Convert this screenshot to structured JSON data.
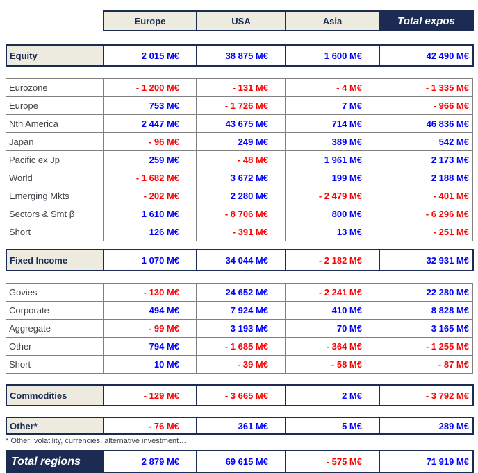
{
  "colors": {
    "navy": "#1b2b52",
    "cream": "#edeae0",
    "positive_value": "#0000fe",
    "negative_value": "#fe0000",
    "detail_border": "#808080"
  },
  "header": {
    "columns": [
      "Europe",
      "USA",
      "Asia",
      "Total expos"
    ]
  },
  "blocks": [
    {
      "type": "summary",
      "id": "equity",
      "label": "Equity",
      "values": [
        "2 015 M€",
        "38 875 M€",
        "1 600 M€",
        "42 490 M€"
      ]
    },
    {
      "type": "detail",
      "id": "equity-detail",
      "rows": [
        {
          "label": "Eurozone",
          "values": [
            "- 1 200 M€",
            "- 131 M€",
            "- 4 M€",
            "- 1 335 M€"
          ]
        },
        {
          "label": "Europe",
          "values": [
            "753 M€",
            "- 1 726 M€",
            "7 M€",
            "- 966 M€"
          ]
        },
        {
          "label": "Nth America",
          "values": [
            "2 447 M€",
            "43 675 M€",
            "714 M€",
            "46 836 M€"
          ]
        },
        {
          "label": "Japan",
          "values": [
            "- 96 M€",
            "249 M€",
            "389 M€",
            "542 M€"
          ]
        },
        {
          "label": "Pacific ex Jp",
          "values": [
            "259 M€",
            "- 48 M€",
            "1 961 M€",
            "2 173 M€"
          ]
        },
        {
          "label": "World",
          "values": [
            "- 1 682 M€",
            "3 672 M€",
            "199 M€",
            "2 188 M€"
          ]
        },
        {
          "label": "Emerging Mkts",
          "values": [
            "- 202 M€",
            "2 280 M€",
            "- 2 479 M€",
            "- 401 M€"
          ]
        },
        {
          "label": "Sectors & Smt β",
          "values": [
            "1 610 M€",
            "- 8 706 M€",
            "800 M€",
            "- 6 296 M€"
          ]
        },
        {
          "label": "Short",
          "values": [
            "126 M€",
            "- 391 M€",
            "13 M€",
            "- 251 M€"
          ]
        }
      ]
    },
    {
      "type": "summary",
      "id": "fixed-income",
      "label": "Fixed Income",
      "values": [
        "1 070 M€",
        "34 044 M€",
        "- 2 182 M€",
        "32 931 M€"
      ]
    },
    {
      "type": "detail",
      "id": "fixed-income-detail",
      "rows": [
        {
          "label": "Govies",
          "values": [
            "- 130 M€",
            "24 652 M€",
            "- 2 241 M€",
            "22 280 M€"
          ]
        },
        {
          "label": "Corporate",
          "values": [
            "494 M€",
            "7 924 M€",
            "410 M€",
            "8 828 M€"
          ]
        },
        {
          "label": "Aggregate",
          "values": [
            "- 99 M€",
            "3 193 M€",
            "70 M€",
            "3 165 M€"
          ]
        },
        {
          "label": "Other",
          "values": [
            "794 M€",
            "- 1 685 M€",
            "- 364 M€",
            "- 1 255 M€"
          ]
        },
        {
          "label": "Short",
          "values": [
            "10 M€",
            "- 39 M€",
            "- 58 M€",
            "- 87 M€"
          ]
        }
      ]
    },
    {
      "type": "summary",
      "id": "commodities",
      "label": "Commodities",
      "values": [
        "- 129 M€",
        "- 3 665 M€",
        "2 M€",
        "- 3 792 M€"
      ]
    },
    {
      "type": "summary",
      "id": "other",
      "label": "Other*",
      "slim": true,
      "values": [
        "- 76 M€",
        "361 M€",
        "5 M€",
        "289 M€"
      ]
    },
    {
      "type": "footnote",
      "id": "other-footnote",
      "text": "* Other: volatility, currencies, alternative investment…"
    },
    {
      "type": "total",
      "id": "total-regions",
      "label": "Total regions",
      "values": [
        "2 879 M€",
        "69 615 M€",
        "- 575 M€",
        "71 919 M€"
      ]
    }
  ]
}
